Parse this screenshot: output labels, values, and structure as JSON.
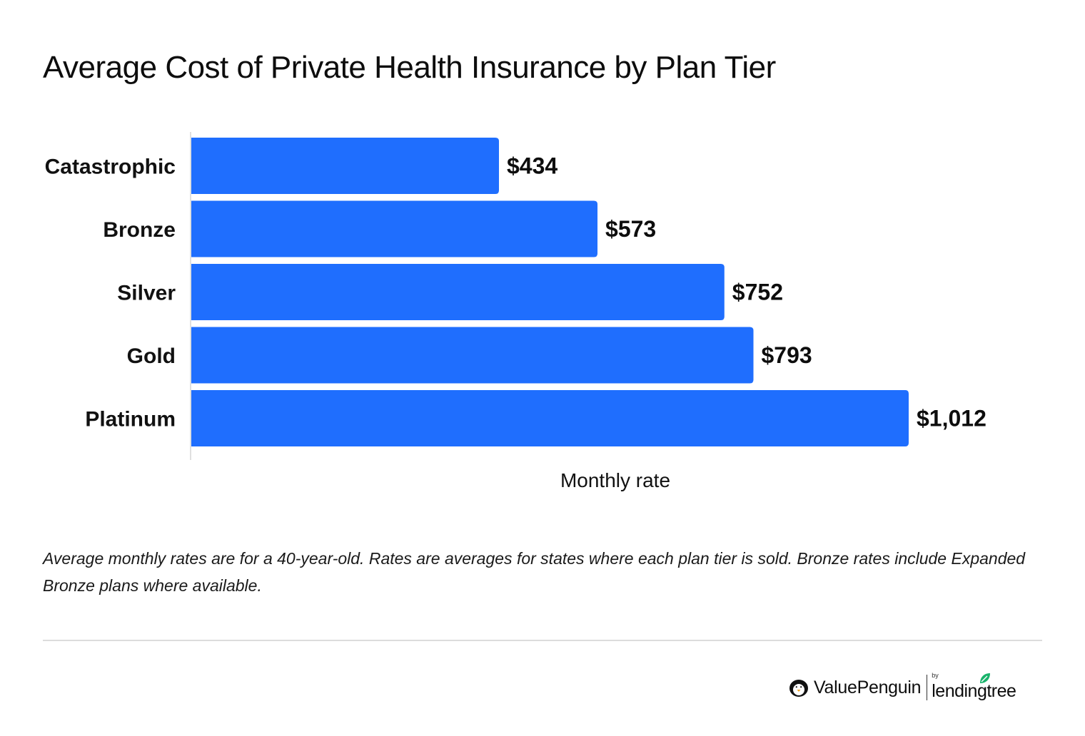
{
  "chart_data": {
    "type": "bar",
    "orientation": "horizontal",
    "title": "Average Cost of Private Health Insurance by Plan Tier",
    "xlabel": "Monthly rate",
    "ylabel": "",
    "categories": [
      "Catastrophic",
      "Bronze",
      "Silver",
      "Gold",
      "Platinum"
    ],
    "values": [
      434,
      573,
      752,
      793,
      1012
    ],
    "value_labels": [
      "$434",
      "$573",
      "$752",
      "$793",
      "$1,012"
    ],
    "xlim": [
      0,
      1012
    ],
    "grid": false,
    "legend": "none",
    "bar_color": "#1f6efe"
  },
  "footnote": "Average monthly rates are for a 40-year-old. Rates are averages for states where each plan tier is sold. Bronze rates include Expanded Bronze plans where available.",
  "branding": {
    "valuepenguin": "ValuePenguin",
    "by": "by",
    "lendingtree": "lendingtree",
    "penguin_icon": "penguin-icon",
    "leaf_icon": "leaf-icon",
    "leaf_color": "#19b36b"
  }
}
